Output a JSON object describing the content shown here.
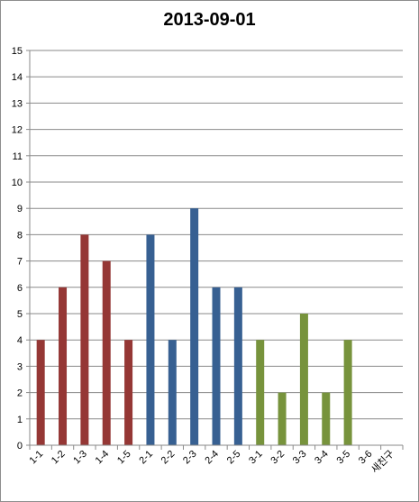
{
  "chart_data": {
    "type": "bar",
    "title": "2013-09-01",
    "xlabel": "",
    "ylabel": "",
    "categories": [
      "1-1",
      "1-2",
      "1-3",
      "1-4",
      "1-5",
      "2-1",
      "2-2",
      "2-3",
      "2-4",
      "2-5",
      "3-1",
      "3-2",
      "3-3",
      "3-4",
      "3-5",
      "3-6",
      "새친구"
    ],
    "values": [
      4,
      6,
      8,
      7,
      4,
      8,
      4,
      9,
      6,
      6,
      4,
      2,
      5,
      2,
      4,
      0,
      0
    ],
    "bar_colors": [
      "#953735",
      "#953735",
      "#953735",
      "#953735",
      "#953735",
      "#376092",
      "#376092",
      "#376092",
      "#376092",
      "#376092",
      "#77933c",
      "#77933c",
      "#77933c",
      "#77933c",
      "#77933c",
      "#77933c",
      "#77933c"
    ],
    "ylim": [
      0,
      15
    ],
    "yticks": [
      0,
      1,
      2,
      3,
      4,
      5,
      6,
      7,
      8,
      9,
      10,
      11,
      12,
      13,
      14,
      15
    ],
    "grid": true,
    "legend": "none"
  }
}
